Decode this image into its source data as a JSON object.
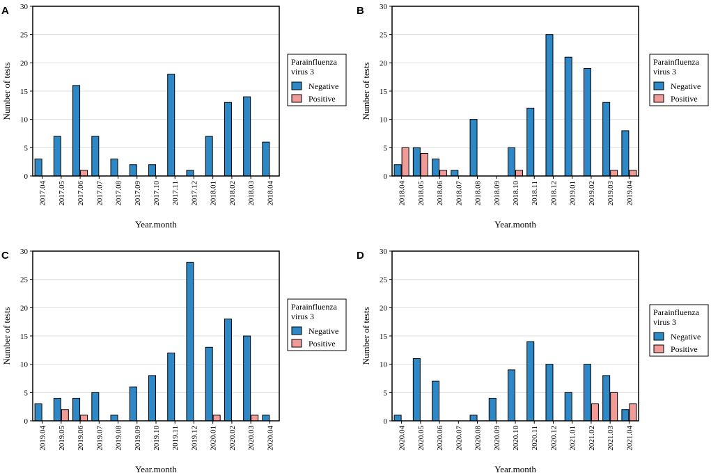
{
  "colors": {
    "negative": "#2f88c6",
    "positive": "#f19b99",
    "grid": "#d9d9d9",
    "axis": "#000000"
  },
  "chart_data": [
    {
      "panel": "A",
      "type": "bar",
      "xlabel": "Year.month",
      "ylabel": "Number of tests",
      "ylim": [
        0,
        30
      ],
      "yticks": [
        0,
        5,
        10,
        15,
        20,
        25,
        30
      ],
      "legend": {
        "title_lines": [
          "Parainfluenza",
          "virus 3"
        ],
        "placement": "right"
      },
      "categories": [
        "2017.04",
        "2017.05",
        "2017.06",
        "2017.07",
        "2017.08",
        "2017.09",
        "2017.10",
        "2017.11",
        "2017.12",
        "2018.01",
        "2018.02",
        "2018.03",
        "2018.04"
      ],
      "series": [
        {
          "name": "Negative",
          "values": [
            3,
            7,
            16,
            7,
            3,
            2,
            2,
            18,
            1,
            7,
            13,
            14,
            6
          ]
        },
        {
          "name": "Positive",
          "values": [
            0,
            0,
            1,
            0,
            0,
            0,
            0,
            0,
            0,
            0,
            0,
            0,
            0
          ]
        }
      ]
    },
    {
      "panel": "B",
      "type": "bar",
      "xlabel": "Year.month",
      "ylabel": "Number of tests",
      "ylim": [
        0,
        30
      ],
      "yticks": [
        0,
        5,
        10,
        15,
        20,
        25,
        30
      ],
      "legend": {
        "title_lines": [
          "Parainfluenza",
          "virus 3"
        ],
        "placement": "right"
      },
      "categories": [
        "2018.04",
        "2018.05",
        "2018.06",
        "2018.07",
        "2018.08",
        "2018.09",
        "2018.10",
        "2018.11",
        "2018.12",
        "2019.01",
        "2019.02",
        "2019.03",
        "2019.04"
      ],
      "series": [
        {
          "name": "Negative",
          "values": [
            2,
            5,
            3,
            1,
            10,
            0,
            5,
            12,
            25,
            21,
            19,
            13,
            8
          ]
        },
        {
          "name": "Positive",
          "values": [
            5,
            4,
            1,
            0,
            0,
            0,
            1,
            0,
            0,
            0,
            0,
            1,
            1
          ]
        }
      ]
    },
    {
      "panel": "C",
      "type": "bar",
      "xlabel": "Year.month",
      "ylabel": "Number of tests",
      "ylim": [
        0,
        30
      ],
      "yticks": [
        0,
        5,
        10,
        15,
        20,
        25,
        30
      ],
      "legend": {
        "title_lines": [
          "Parainfluenza",
          "virus 3"
        ],
        "placement": "right"
      },
      "categories": [
        "2019.04",
        "2019.05",
        "2019.06",
        "2019.07",
        "2019.08",
        "2019.09",
        "2019.10",
        "2019.11",
        "2019.12",
        "2020.01",
        "2020.02",
        "2020.03",
        "2020.04"
      ],
      "series": [
        {
          "name": "Negative",
          "values": [
            3,
            4,
            4,
            5,
            1,
            6,
            8,
            12,
            28,
            13,
            18,
            15,
            1
          ]
        },
        {
          "name": "Positive",
          "values": [
            0,
            2,
            1,
            0,
            0,
            0,
            0,
            0,
            0,
            1,
            0,
            1,
            0
          ]
        }
      ]
    },
    {
      "panel": "D",
      "type": "bar",
      "xlabel": "Year.month",
      "ylabel": "Number of tests",
      "ylim": [
        0,
        30
      ],
      "yticks": [
        0,
        5,
        10,
        15,
        20,
        25,
        30
      ],
      "legend": {
        "title_lines": [
          "Parainfluenza",
          "virus 3"
        ],
        "placement": "right"
      },
      "categories": [
        "2020.04",
        "2020.05",
        "2020.06",
        "2020.07",
        "2020.08",
        "2020.09",
        "2020.10",
        "2020.11",
        "2020.12",
        "2021.01",
        "2021.02",
        "2021.03",
        "2021.04"
      ],
      "series": [
        {
          "name": "Negative",
          "values": [
            1,
            11,
            7,
            0,
            1,
            4,
            9,
            14,
            10,
            5,
            10,
            8,
            2
          ]
        },
        {
          "name": "Positive",
          "values": [
            0,
            0,
            0,
            0,
            0,
            0,
            0,
            0,
            0,
            0,
            3,
            5,
            3
          ]
        }
      ]
    }
  ]
}
